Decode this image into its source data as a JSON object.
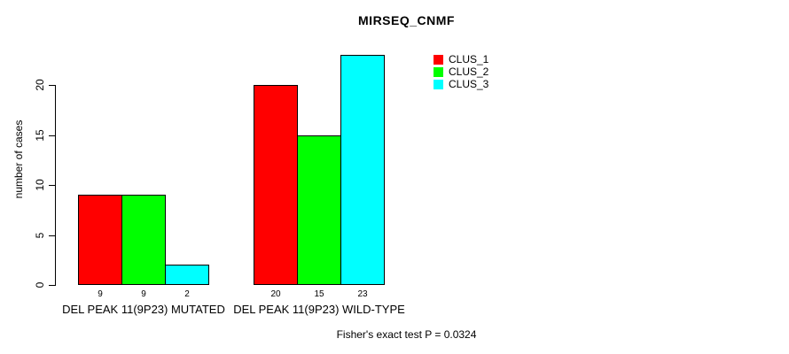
{
  "title": "MIRSEQ_CNMF",
  "ylabel": "number of cases",
  "footer": "Fisher's exact test P = 0.0324",
  "colors": {
    "background": "#FFFFFF",
    "axis": "#000000",
    "text": "#000000",
    "clus_1": "#FF0000",
    "clus_2": "#00FF00",
    "clus_3": "#00FFFF"
  },
  "legend": {
    "position": "top-right",
    "items": [
      {
        "label": "CLUS_1",
        "color": "#FF0000"
      },
      {
        "label": "CLUS_2",
        "color": "#00FF00"
      },
      {
        "label": "CLUS_3",
        "color": "#00FFFF"
      }
    ]
  },
  "chart_data": {
    "type": "bar",
    "title": "MIRSEQ_CNMF",
    "xlabel": "",
    "ylabel": "number of cases",
    "categories": [
      "DEL PEAK 11(9P23) MUTATED",
      "DEL PEAK 11(9P23) WILD-TYPE"
    ],
    "series": [
      {
        "name": "CLUS_1",
        "color": "#FF0000",
        "values": [
          9,
          20
        ]
      },
      {
        "name": "CLUS_2",
        "color": "#00FF00",
        "values": [
          9,
          15
        ]
      },
      {
        "name": "CLUS_3",
        "color": "#00FFFF",
        "values": [
          2,
          23
        ]
      }
    ],
    "bar_value_labels": [
      [
        "9",
        "9",
        "2"
      ],
      [
        "20",
        "15",
        "23"
      ]
    ],
    "yticks": [
      0,
      5,
      10,
      15,
      20
    ],
    "ylim": [
      0,
      23
    ],
    "grid": false,
    "legend_position": "top-right",
    "annotation": "Fisher's exact test P = 0.0324"
  }
}
